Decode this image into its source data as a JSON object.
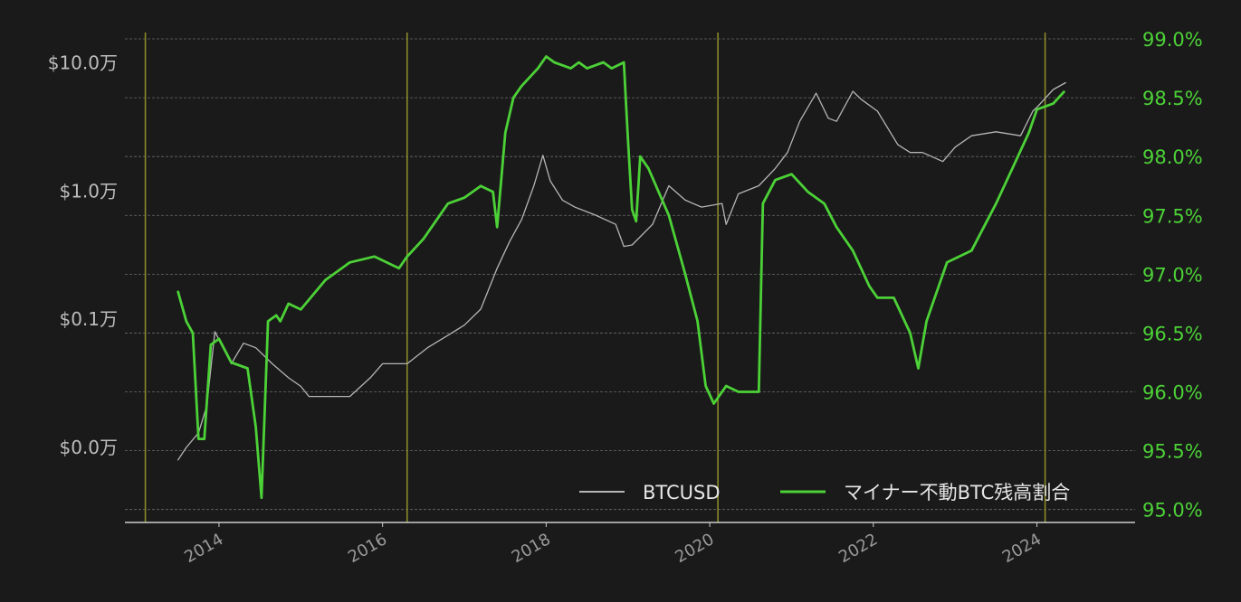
{
  "chart_data": {
    "type": "line",
    "title": "",
    "xlabel": "",
    "ylabel": "",
    "xlim": [
      2012.85,
      2025.2
    ],
    "x_ticks": [
      "2014",
      "2016",
      "2018",
      "2020",
      "2022",
      "2024"
    ],
    "vlines": [
      2013.1,
      2016.3,
      2020.1,
      2024.1
    ],
    "y_left": {
      "scale": "log",
      "range": [
        0.0026,
        19.0
      ],
      "ticks": [
        {
          "value": 0.01,
          "label": "$0.0万"
        },
        {
          "value": 0.1,
          "label": "$0.1万"
        },
        {
          "value": 1.0,
          "label": "$1.0万"
        },
        {
          "value": 10.0,
          "label": "$10.0万"
        }
      ]
    },
    "y_right": {
      "range": [
        94.89,
        99.1
      ],
      "ticks": [
        "95.0%",
        "95.5%",
        "96.0%",
        "96.5%",
        "97.0%",
        "97.5%",
        "98.0%",
        "98.5%",
        "99.0%"
      ],
      "tick_values": [
        95.0,
        95.5,
        96.0,
        96.5,
        97.0,
        97.5,
        98.0,
        98.5,
        99.0
      ]
    },
    "grid": true,
    "legend_position": "bottom-right",
    "colors": {
      "background": "#1a1a1a",
      "btc": "#b5b5b5",
      "ratio": "#4cd137",
      "vline": "#8a8a2a",
      "grid": "#6a6a6a",
      "axis": "#cccccc",
      "left_tick": "#bdbdbd",
      "right_tick": "#4cd137",
      "x_tick": "#9a9a9a"
    },
    "series": [
      {
        "name": "BTCUSD",
        "axis": "left",
        "x": [
          2013.5,
          2013.6,
          2013.75,
          2013.85,
          2013.95,
          2014.05,
          2014.15,
          2014.3,
          2014.45,
          2014.65,
          2014.85,
          2015.0,
          2015.1,
          2015.35,
          2015.6,
          2015.85,
          2016.0,
          2016.3,
          2016.55,
          2016.8,
          2017.0,
          2017.2,
          2017.4,
          2017.55,
          2017.7,
          2017.85,
          2017.96,
          2018.05,
          2018.2,
          2018.35,
          2018.6,
          2018.85,
          2018.95,
          2019.05,
          2019.3,
          2019.5,
          2019.7,
          2019.9,
          2020.15,
          2020.2,
          2020.35,
          2020.6,
          2020.8,
          2020.95,
          2021.1,
          2021.3,
          2021.45,
          2021.55,
          2021.75,
          2021.85,
          2022.05,
          2022.3,
          2022.45,
          2022.6,
          2022.85,
          2023.0,
          2023.2,
          2023.5,
          2023.8,
          2023.95,
          2024.0,
          2024.2,
          2024.35
        ],
        "values": [
          0.008,
          0.01,
          0.013,
          0.021,
          0.08,
          0.06,
          0.045,
          0.065,
          0.06,
          0.045,
          0.035,
          0.03,
          0.025,
          0.025,
          0.025,
          0.035,
          0.045,
          0.045,
          0.06,
          0.075,
          0.09,
          0.12,
          0.25,
          0.4,
          0.6,
          1.1,
          1.9,
          1.2,
          0.85,
          0.75,
          0.65,
          0.55,
          0.37,
          0.38,
          0.55,
          1.1,
          0.85,
          0.75,
          0.8,
          0.55,
          0.95,
          1.1,
          1.5,
          2.0,
          3.5,
          5.8,
          3.7,
          3.5,
          6.0,
          5.2,
          4.2,
          2.3,
          2.0,
          2.0,
          1.7,
          2.2,
          2.7,
          2.9,
          2.7,
          4.2,
          4.5,
          6.2,
          7.0
        ]
      },
      {
        "name": "マイナー不動BTC残高割合",
        "axis": "right",
        "x": [
          2013.5,
          2013.6,
          2013.68,
          2013.75,
          2013.82,
          2013.9,
          2014.0,
          2014.15,
          2014.35,
          2014.45,
          2014.52,
          2014.6,
          2014.7,
          2014.75,
          2014.85,
          2015.0,
          2015.3,
          2015.6,
          2015.9,
          2016.2,
          2016.3,
          2016.5,
          2016.8,
          2017.0,
          2017.2,
          2017.35,
          2017.4,
          2017.45,
          2017.5,
          2017.55,
          2017.6,
          2017.7,
          2017.9,
          2018.0,
          2018.1,
          2018.3,
          2018.4,
          2018.5,
          2018.7,
          2018.8,
          2018.95,
          2019.0,
          2019.05,
          2019.1,
          2019.15,
          2019.25,
          2019.5,
          2019.7,
          2019.85,
          2019.95,
          2020.05,
          2020.2,
          2020.35,
          2020.6,
          2020.65,
          2020.8,
          2021.0,
          2021.2,
          2021.4,
          2021.55,
          2021.75,
          2021.95,
          2022.05,
          2022.25,
          2022.45,
          2022.55,
          2022.65,
          2022.75,
          2022.9,
          2023.2,
          2023.35,
          2023.5,
          2023.7,
          2023.9,
          2024.0,
          2024.2,
          2024.33
        ],
        "values": [
          96.85,
          96.6,
          96.5,
          95.6,
          95.6,
          96.4,
          96.45,
          96.25,
          96.2,
          95.7,
          95.1,
          96.6,
          96.65,
          96.6,
          96.75,
          96.7,
          96.95,
          97.1,
          97.15,
          97.05,
          97.15,
          97.3,
          97.6,
          97.65,
          97.75,
          97.7,
          97.4,
          97.8,
          98.2,
          98.35,
          98.5,
          98.6,
          98.75,
          98.85,
          98.8,
          98.75,
          98.8,
          98.75,
          98.8,
          98.75,
          98.8,
          98.15,
          97.55,
          97.45,
          98.0,
          97.9,
          97.5,
          97.0,
          96.6,
          96.05,
          95.9,
          96.05,
          96.0,
          96.0,
          97.6,
          97.8,
          97.85,
          97.7,
          97.6,
          97.4,
          97.2,
          96.9,
          96.8,
          96.8,
          96.5,
          96.2,
          96.6,
          96.8,
          97.1,
          97.2,
          97.4,
          97.6,
          97.9,
          98.2,
          98.4,
          98.45,
          98.55
        ]
      }
    ]
  }
}
